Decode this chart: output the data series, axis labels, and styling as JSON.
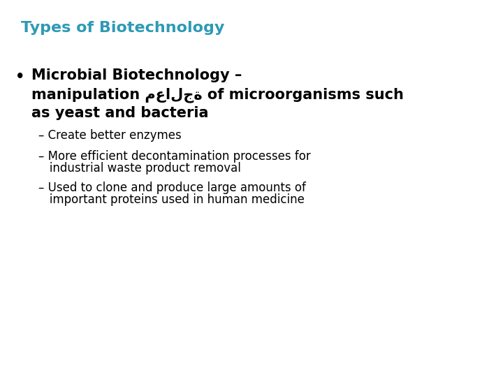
{
  "title": "Types of Biotechnology",
  "title_color": "#2E9AB5",
  "title_fontsize": 16,
  "title_bold": true,
  "background_color": "#ffffff",
  "bullet_line1": "Microbial Biotechnology –",
  "bullet_line2": "manipulation معالجة of microorganisms such",
  "bullet_line3": "as yeast and bacteria",
  "bullet_fontsize": 15,
  "bullet_bold": true,
  "bullet_color": "#000000",
  "sub_bullet1_line1": "– Create better enzymes",
  "sub_bullet2_line1": "– More efficient decontamination processes for",
  "sub_bullet2_line2": "   industrial waste product removal",
  "sub_bullet3_line1": "– Used to clone and produce large amounts of",
  "sub_bullet3_line2": "   important proteins used in human medicine",
  "sub_bullet_fontsize": 12,
  "sub_bullet_color": "#000000",
  "bullet_marker": "•",
  "bullet_marker_fontsize": 15
}
